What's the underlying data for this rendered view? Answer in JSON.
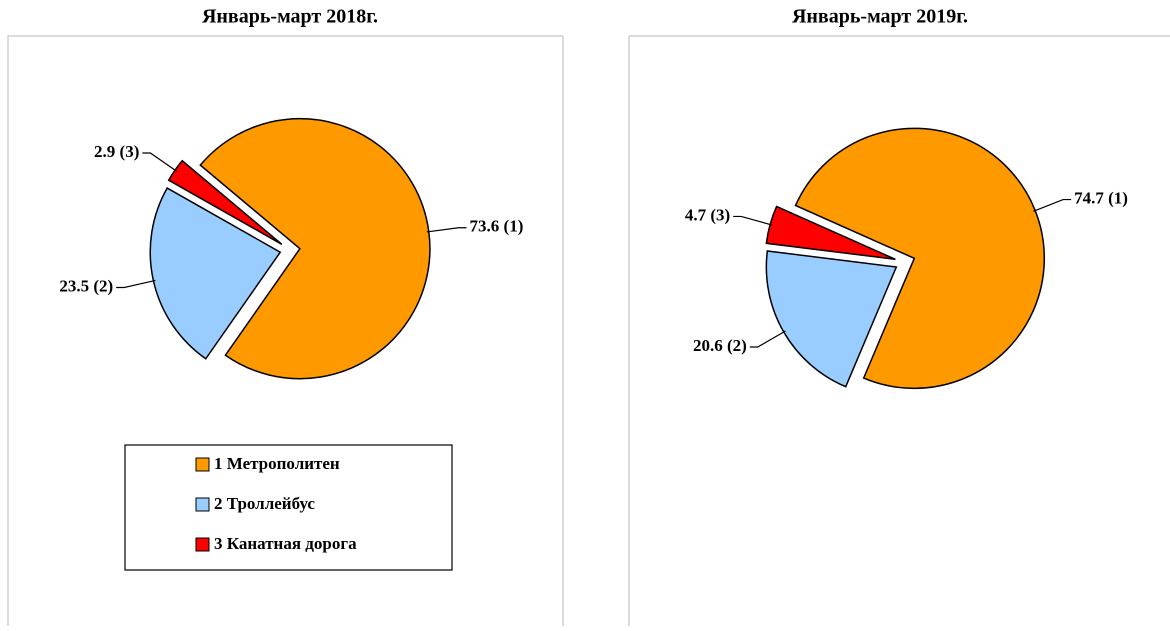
{
  "chart_data": [
    {
      "type": "pie",
      "title": "Январь-март 2018г.",
      "categories": [
        "1 Метрополитен",
        "2 Троллейбус",
        "3 Канатная дорога"
      ],
      "values": [
        73.6,
        23.5,
        2.9
      ],
      "value_labels": [
        "73.6 (1)",
        "23.5 (2)",
        "2.9 (3)"
      ],
      "colors": [
        "#ff9900",
        "#99ccff",
        "#ff0000"
      ],
      "legend": true
    },
    {
      "type": "pie",
      "title": "Январь-март 2019г.",
      "categories": [
        "1 Метрополитен",
        "2 Троллейбус",
        "3 Канатная дорога"
      ],
      "values": [
        74.7,
        20.6,
        4.7
      ],
      "value_labels": [
        "74.7 (1)",
        "20.6 (2)",
        "4.7 (3)"
      ],
      "colors": [
        "#ff9900",
        "#99ccff",
        "#ff0000"
      ],
      "legend": false
    }
  ]
}
